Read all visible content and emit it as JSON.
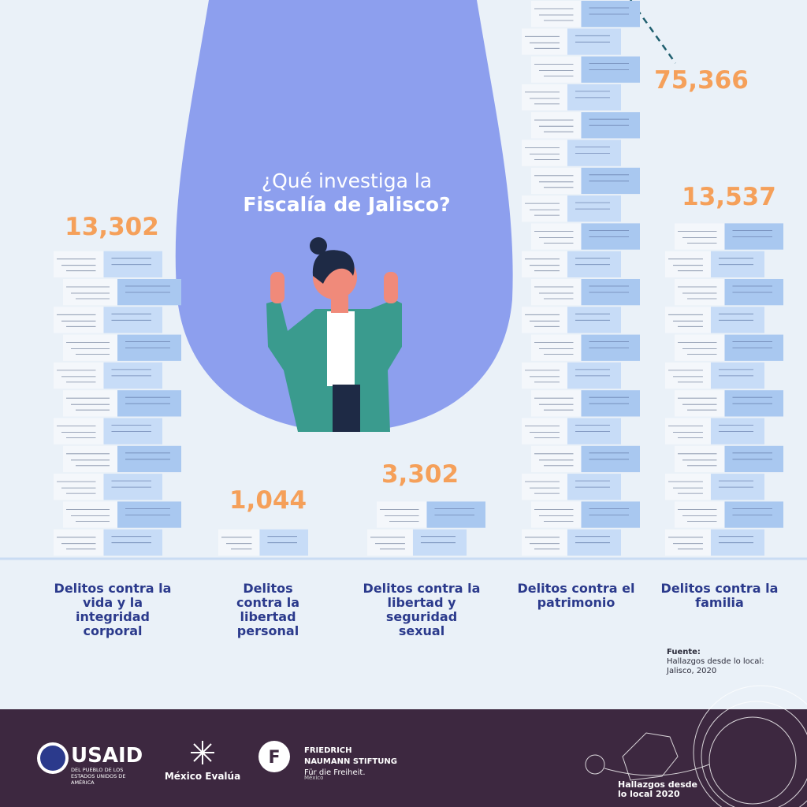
{
  "title": {
    "line1": "¿Qué investiga la",
    "line2": "Fiscalía de Jalisco?"
  },
  "columns": [
    {
      "value": "13,302",
      "label": "Delitos contra la vida y la integridad corporal"
    },
    {
      "value": "1,044",
      "label": "Delitos contra la libertad personal"
    },
    {
      "value": "3,302",
      "label": "Delitos contra la libertad y seguridad sexual"
    },
    {
      "value": "75,366",
      "label": "Delitos contra el patrimonio"
    },
    {
      "value": "13,537",
      "label": "Delitos contra la familia"
    }
  ],
  "source": {
    "heading": "Fuente:",
    "text": "Hallazgos desde lo local: Jalisco, 2020"
  },
  "footer": {
    "usaid": "USAID",
    "usaid_sub": "DEL PUEBLO DE LOS ESTADOS UNIDOS DE AMÉRICA",
    "mexico_evalua": "México Evalúa",
    "fnf_name": "FRIEDRICH NAUMANN STIFTUNG",
    "fnf_tagline": "Für die Freiheit.",
    "fnf_country": "México",
    "hallazgos": "Hallazgos desde lo local 2020"
  }
}
